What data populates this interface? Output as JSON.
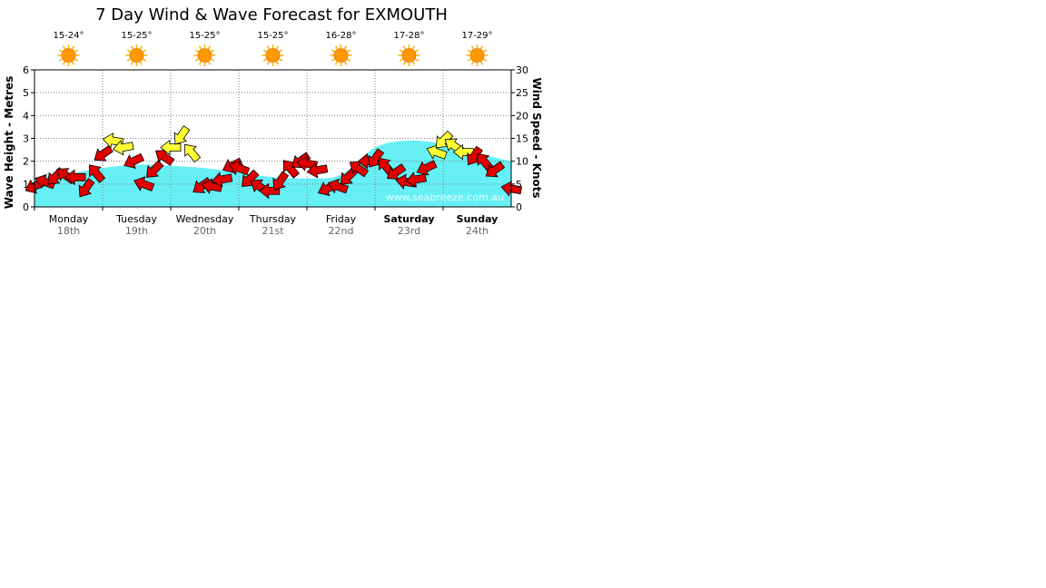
{
  "page": {
    "title": "7 Day Wind & Wave Forecast for EXMOUTH"
  },
  "days": [
    {
      "name": "Monday",
      "date": "18th",
      "weekend": false,
      "temp": "15-24°"
    },
    {
      "name": "Tuesday",
      "date": "19th",
      "weekend": false,
      "temp": "15-25°"
    },
    {
      "name": "Wednesday",
      "date": "20th",
      "weekend": false,
      "temp": "15-25°"
    },
    {
      "name": "Thursday",
      "date": "21st",
      "weekend": false,
      "temp": "15-25°"
    },
    {
      "name": "Friday",
      "date": "22nd",
      "weekend": false,
      "temp": "16-28°"
    },
    {
      "name": "Saturday",
      "date": "23rd",
      "weekend": true,
      "temp": "17-28°"
    },
    {
      "name": "Sunday",
      "date": "24th",
      "weekend": true,
      "temp": "17-29°"
    }
  ],
  "weather_icon": "sun-icon",
  "watermark": "www.seabreeze.com.au",
  "colors": {
    "wave_fill": "#66f0f5",
    "wind_strong": "#e00000",
    "wind_light": "#ffff33",
    "sun": "#ff9900"
  },
  "chart_data": {
    "type": "area",
    "title": "7 Day Wind & Wave Forecast for EXMOUTH",
    "ylabel": "Wave Height - Metres",
    "y2label": "Wind Speed - Knots",
    "ylim": [
      0,
      6
    ],
    "y2lim": [
      0,
      30
    ],
    "yticks": [
      "0",
      "1",
      "2",
      "3",
      "4",
      "5",
      "6"
    ],
    "y2ticks": [
      "0",
      "5",
      "10",
      "15",
      "20",
      "25",
      "30"
    ],
    "grid": true,
    "x_days": 7,
    "series": [
      {
        "name": "Wave Height",
        "axis": "left",
        "x": [
          0,
          0.5,
          1,
          1.5,
          2,
          2.5,
          3,
          3.5,
          4,
          4.5,
          5,
          5.5,
          6,
          6.5,
          7
        ],
        "values": [
          1.3,
          1.45,
          1.7,
          1.85,
          1.8,
          1.7,
          1.5,
          1.3,
          1.25,
          1.4,
          2.6,
          2.9,
          2.75,
          2.35,
          2.0
        ]
      },
      {
        "name": "Wind Speed",
        "axis": "right",
        "x": [
          0,
          0.15,
          0.3,
          0.45,
          0.6,
          0.75,
          0.9,
          1.0,
          1.15,
          1.3,
          1.45,
          1.6,
          1.75,
          1.9,
          2.0,
          2.15,
          2.3,
          2.45,
          2.6,
          2.75,
          2.9,
          3.0,
          3.15,
          3.3,
          3.45,
          3.6,
          3.75,
          3.9,
          4.0,
          4.15,
          4.3,
          4.45,
          4.6,
          4.75,
          4.9,
          5.0,
          5.15,
          5.3,
          5.45,
          5.6,
          5.75,
          5.9,
          6.0,
          6.15,
          6.3,
          6.45,
          6.6,
          6.75,
          7.0
        ],
        "values": [
          4.5,
          5.5,
          6.5,
          7.0,
          6.5,
          4.0,
          7.5,
          11.5,
          14.5,
          13.0,
          10.0,
          5.0,
          8.0,
          11.0,
          13.0,
          15.5,
          12.0,
          4.5,
          4.5,
          6.0,
          9.0,
          8.5,
          6.0,
          4.5,
          3.5,
          5.5,
          8.5,
          10.0,
          9.5,
          8.0,
          4.0,
          4.5,
          6.5,
          8.5,
          10.0,
          10.5,
          9.0,
          7.5,
          5.5,
          6.0,
          8.5,
          12.0,
          14.5,
          13.5,
          12.0,
          11.0,
          10.0,
          8.0,
          4.0
        ]
      }
    ]
  }
}
